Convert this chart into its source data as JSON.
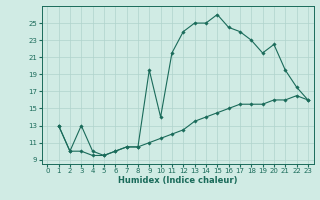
{
  "line1_x": [
    1,
    2,
    3,
    4,
    5,
    6,
    7,
    8,
    9,
    10,
    11,
    12,
    13,
    14,
    15,
    16,
    17,
    18,
    19,
    20,
    21,
    22,
    23
  ],
  "line1_y": [
    13,
    10,
    13,
    10,
    9.5,
    10,
    10.5,
    10.5,
    19.5,
    14,
    21.5,
    24,
    25,
    25,
    26,
    24.5,
    24,
    23,
    21.5,
    22.5,
    19.5,
    17.5,
    16
  ],
  "line2_x": [
    1,
    2,
    3,
    4,
    5,
    6,
    7,
    8,
    9,
    10,
    11,
    12,
    13,
    14,
    15,
    16,
    17,
    18,
    19,
    20,
    21,
    22,
    23
  ],
  "line2_y": [
    13,
    10,
    10,
    9.5,
    9.5,
    10,
    10.5,
    10.5,
    11,
    11.5,
    12,
    12.5,
    13.5,
    14,
    14.5,
    15,
    15.5,
    15.5,
    15.5,
    16,
    16,
    16.5,
    16
  ],
  "line_color": "#1a6b5a",
  "bg_color": "#d0ebe4",
  "grid_color": "#b0d4cc",
  "xlabel": "Humidex (Indice chaleur)",
  "xlabel_fontsize": 6,
  "xlim": [
    -0.5,
    23.5
  ],
  "ylim": [
    8.5,
    27
  ],
  "xticks": [
    0,
    1,
    2,
    3,
    4,
    5,
    6,
    7,
    8,
    9,
    10,
    11,
    12,
    13,
    14,
    15,
    16,
    17,
    18,
    19,
    20,
    21,
    22,
    23
  ],
  "yticks": [
    9,
    11,
    13,
    15,
    17,
    19,
    21,
    23,
    25
  ],
  "tick_fontsize": 5,
  "marker": "D",
  "marker_size": 1.8,
  "linewidth": 0.8
}
